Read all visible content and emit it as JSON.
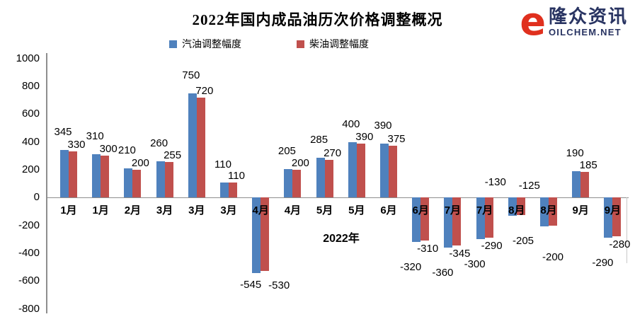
{
  "header": {
    "brand": {
      "name": "隆众资讯",
      "domain": "OILCHEM.NET",
      "mark_glyph": "e",
      "accent_color": "#e0301e",
      "navy_color": "#293462"
    }
  },
  "chart_data": {
    "type": "bar",
    "title": "2022年国内成品油历次价格调整概况",
    "xlabel": "2022年",
    "ylabel": "",
    "ylim": [
      -800,
      1000
    ],
    "ytick_step": 200,
    "yticks": [
      1000,
      800,
      600,
      400,
      200,
      0,
      -200,
      -400,
      -600,
      -800
    ],
    "grid": false,
    "legend_position": "top-center",
    "categories": [
      "1月",
      "1月",
      "2月",
      "3月",
      "3月",
      "3月",
      "4月",
      "4月",
      "5月",
      "5月",
      "6月",
      "6月",
      "7月",
      "7月",
      "8月",
      "8月",
      "9月",
      "9月"
    ],
    "series": [
      {
        "name": "汽油调整幅度",
        "color": "#4f81bd",
        "values": [
          345,
          310,
          210,
          260,
          750,
          110,
          -545,
          205,
          285,
          400,
          390,
          -320,
          -360,
          -300,
          -130,
          -205,
          190,
          -290
        ]
      },
      {
        "name": "柴油调整幅度",
        "color": "#c0504d",
        "values": [
          330,
          300,
          200,
          255,
          720,
          110,
          -530,
          200,
          270,
          390,
          375,
          -310,
          -345,
          -290,
          -125,
          -200,
          185,
          -280
        ]
      }
    ],
    "label_hints": [
      "",
      "",
      "",
      "",
      "",
      "",
      "side",
      "",
      "",
      "",
      "",
      "",
      "",
      "",
      "above-axis",
      "blue-first",
      "",
      ""
    ],
    "axis_color": "#8e8e8e"
  }
}
